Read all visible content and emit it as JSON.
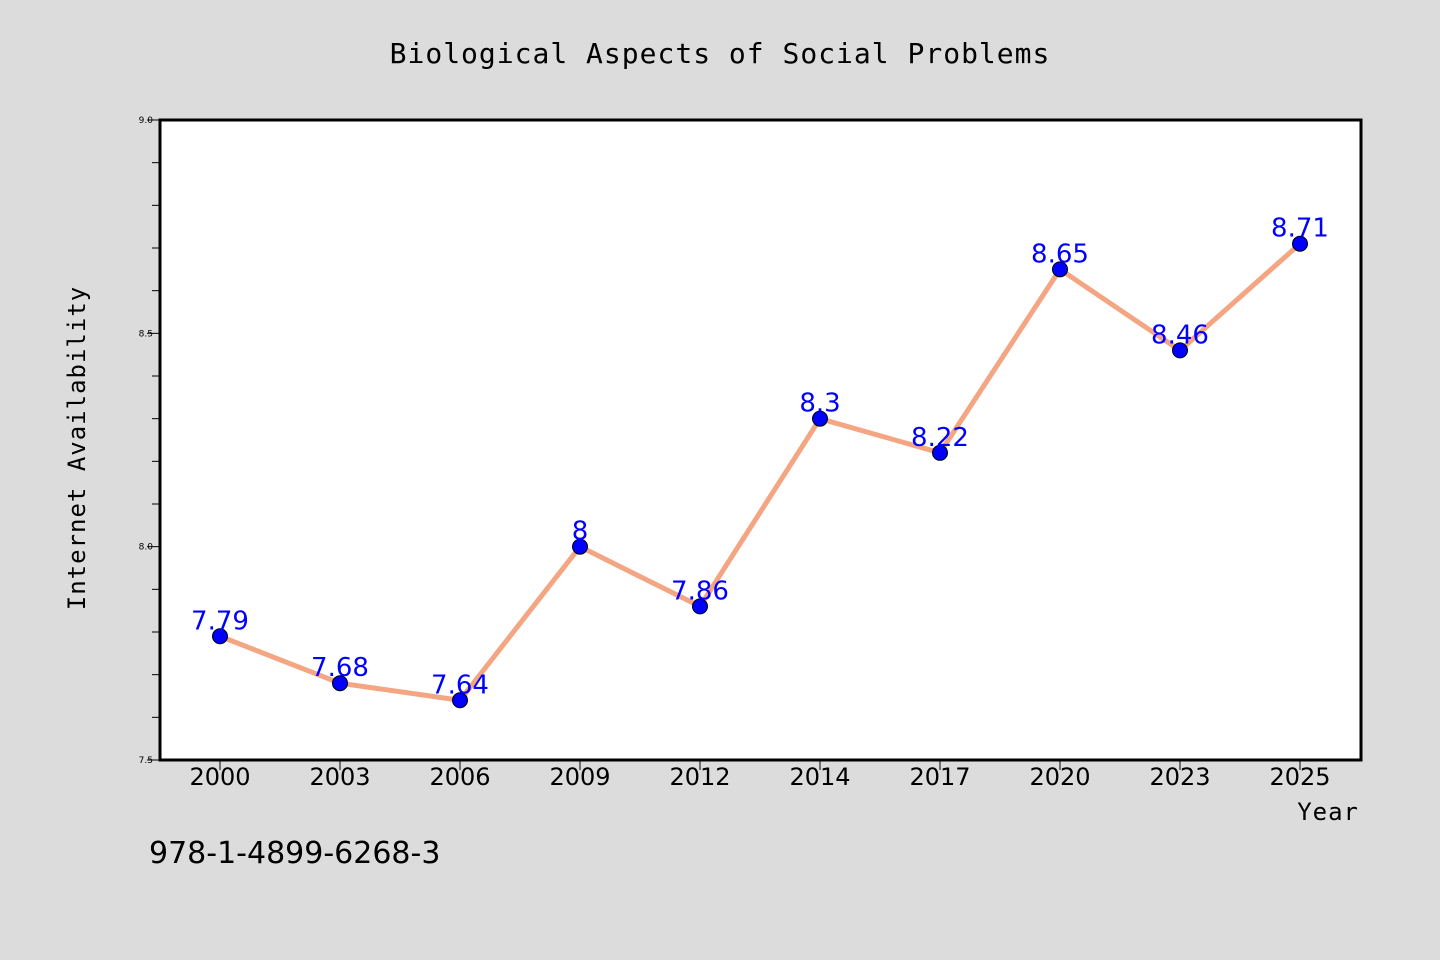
{
  "chart_data": {
    "type": "line",
    "title": "Biological Aspects of Social Problems",
    "xlabel": "Year",
    "ylabel": "Internet Availability",
    "categories": [
      "2000",
      "2003",
      "2006",
      "2009",
      "2012",
      "2014",
      "2017",
      "2020",
      "2023",
      "2025"
    ],
    "series": [
      {
        "values": [
          7.79,
          7.68,
          7.64,
          8.0,
          7.86,
          8.3,
          8.22,
          8.65,
          8.46,
          8.71
        ],
        "labels": [
          "7.79",
          "7.68",
          "7.64",
          "8",
          "7.86",
          "8.3",
          "8.22",
          "8.65",
          "8.46",
          "8.71"
        ],
        "line_color": "#f4a582",
        "marker_color": "#0000ff",
        "label_color": "#0000ff"
      }
    ],
    "ylim": [
      7.5,
      9.0
    ],
    "yticks": [
      "7.5",
      "8.0",
      "8.5",
      "9.0"
    ],
    "grid": false,
    "background": "#ffffff",
    "figure_background": "#dcdcdc"
  },
  "footer": {
    "isbn": "978-1-4899-6268-3"
  }
}
